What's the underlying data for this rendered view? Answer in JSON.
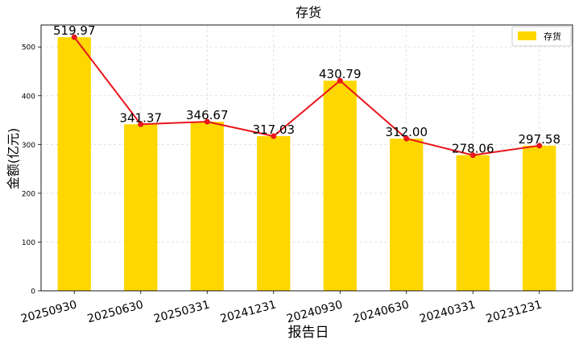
{
  "chart_data": {
    "type": "bar",
    "title": "存货",
    "xlabel": "报告日",
    "ylabel": "金额(亿元)",
    "categories": [
      "20250930",
      "20250630",
      "20250331",
      "20241231",
      "20240930",
      "20240630",
      "20240331",
      "20231231"
    ],
    "series": [
      {
        "name": "存货",
        "type": "bar",
        "values": [
          519.97,
          341.37,
          346.67,
          317.03,
          430.79,
          312.0,
          278.06,
          297.58
        ],
        "color": "#FFD700"
      },
      {
        "type": "line",
        "values": [
          519.97,
          341.37,
          346.67,
          317.03,
          430.79,
          312.0,
          278.06,
          297.58
        ],
        "color": "#E8161B"
      }
    ],
    "data_labels": [
      "519.97",
      "341.37",
      "346.67",
      "317.03",
      "430.79",
      "312.00",
      "278.06",
      "297.58"
    ],
    "ylim": [
      0,
      545
    ],
    "yticks": [
      0,
      100,
      200,
      300,
      400,
      500
    ],
    "grid": true,
    "legend": "top-right"
  }
}
